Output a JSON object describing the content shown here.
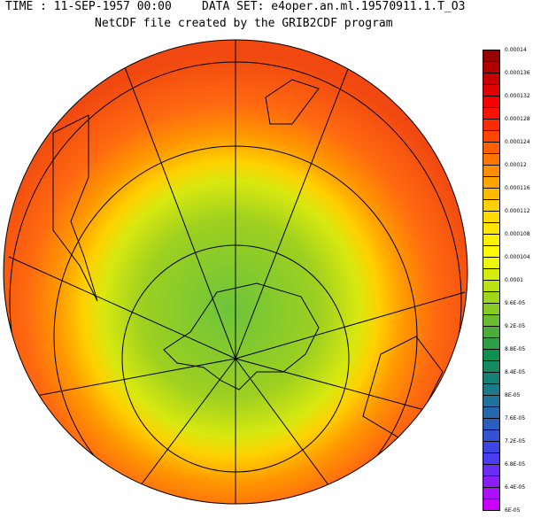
{
  "header": {
    "time": "TIME : 11-SEP-1957 00:00",
    "dataset": "DATA SET: e4oper.an.ml.19570911.1.T_O3",
    "subtitle": "NetCDF file created by the GRIB2CDF program"
  },
  "map": {
    "projection": "orthographic, south pole view",
    "colors": {
      "outer": "#ff6a10",
      "mid": "#ffb000",
      "ring": "#f0f000",
      "inner": "#9ed020",
      "core": "#6cc43a",
      "hot": "#f03010"
    }
  },
  "colorbar": {
    "labels": [
      "0.00014",
      "0.000136",
      "0.000132",
      "0.000128",
      "0.000124",
      "0.00012",
      "0.000116",
      "0.000112",
      "0.000108",
      "0.000104",
      "0.0001",
      "9.6E-05",
      "9.2E-05",
      "8.8E-05",
      "8.4E-05",
      "8E-05",
      "7.6E-05",
      "7.2E-05",
      "6.8E-05",
      "6.4E-05",
      "6E-05"
    ],
    "anchor_colors_top_to_bottom": [
      "#990000",
      "#ff0000",
      "#ff7000",
      "#ffd000",
      "#ffff00",
      "#90d020",
      "#109050",
      "#2070a0",
      "#4040f0",
      "#cc00ff"
    ]
  }
}
